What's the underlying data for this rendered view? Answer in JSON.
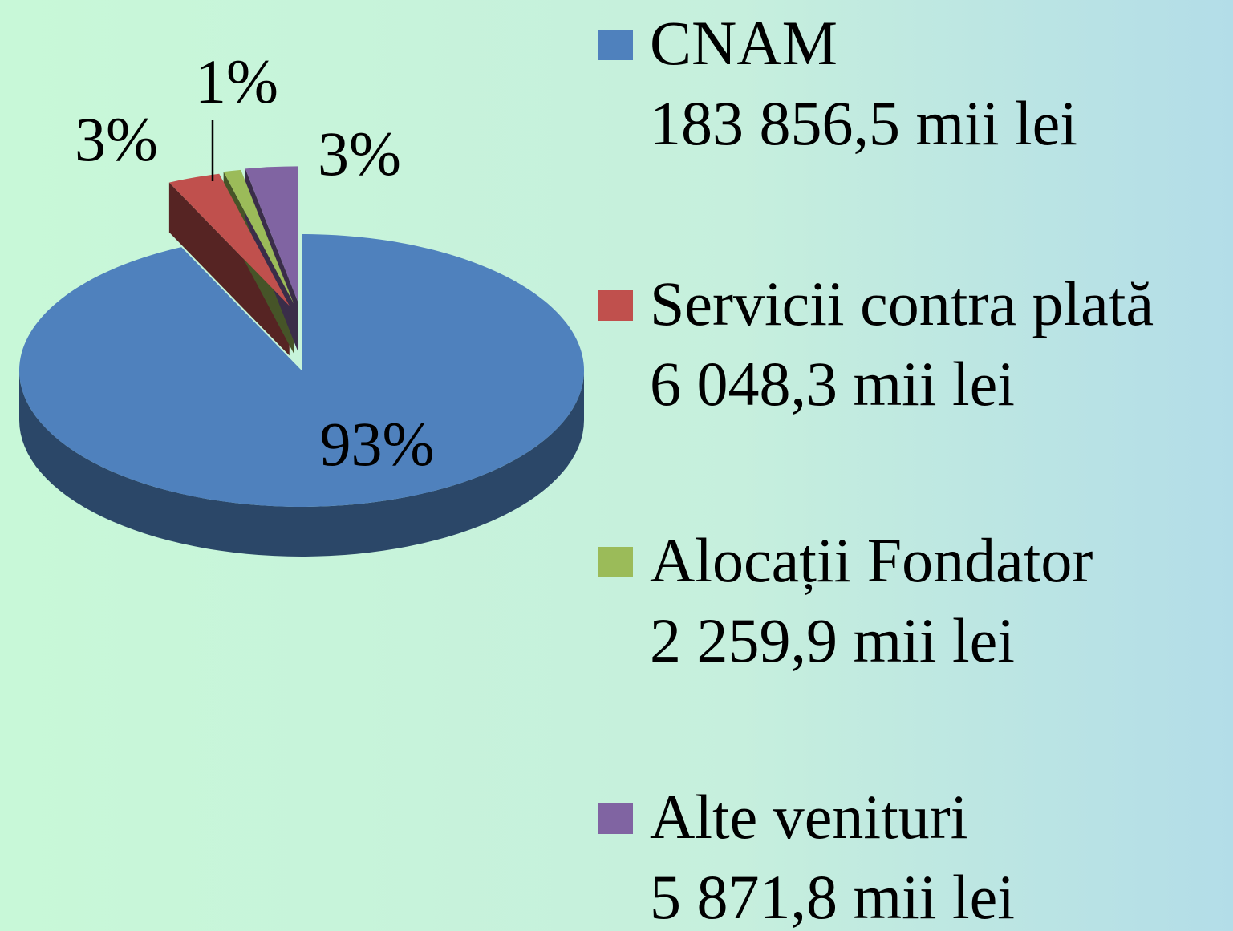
{
  "chart_data": {
    "type": "pie",
    "categories": [
      "CNAM",
      "Servicii contra plată",
      "Alocații Fondator",
      "Alte venituri"
    ],
    "amounts": [
      "183 856,5 mii lei",
      "6 048,3 mii lei",
      "2 259,9 mii lei",
      "5 871,8 mii lei"
    ],
    "values": [
      93,
      3,
      1,
      3
    ],
    "value_labels": [
      "93%",
      "3%",
      "1%",
      "3%"
    ],
    "colors": [
      "#4f81bd",
      "#c0504d",
      "#9bbb59",
      "#8064a2"
    ],
    "legend": "right"
  }
}
